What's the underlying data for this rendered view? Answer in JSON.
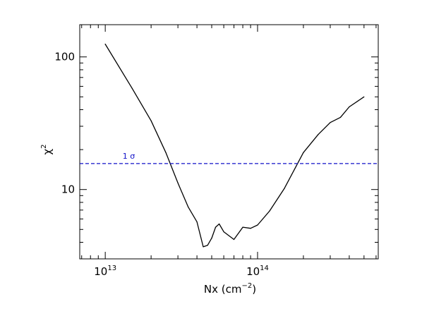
{
  "chart_data": {
    "type": "line",
    "title": "",
    "xlabel": "Nx (cm",
    "xlabel_exponent": "−2",
    "xlabel_suffix": ")",
    "ylabel": "χ",
    "ylabel_exponent": "2",
    "xscale": "log",
    "yscale": "log",
    "xlim": [
      6800000000000.0,
      620000000000000.0
    ],
    "ylim": [
      3.0,
      175
    ],
    "grid": false,
    "legend": "none",
    "x_ticks": [
      {
        "value": 10000000000000.0,
        "base": "10",
        "exp": "13"
      },
      {
        "value": 100000000000000.0,
        "base": "10",
        "exp": "14"
      }
    ],
    "y_ticks": [
      {
        "value": 10,
        "label": "10"
      },
      {
        "value": 100,
        "label": "100"
      }
    ],
    "series": [
      {
        "color": "#000000",
        "line_style": "solid",
        "x": [
          10000000000000.0,
          15000000000000.0,
          20000000000000.0,
          25000000000000.0,
          30000000000000.0,
          35000000000000.0,
          40000000000000.0,
          44000000000000.0,
          47000000000000.0,
          50000000000000.0,
          53000000000000.0,
          56000000000000.0,
          60000000000000.0,
          70000000000000.0,
          80000000000000.0,
          90000000000000.0,
          100000000000000.0,
          120000000000000.0,
          150000000000000.0,
          200000000000000.0,
          250000000000000.0,
          300000000000000.0,
          350000000000000.0,
          400000000000000.0,
          500000000000000.0
        ],
        "y": [
          125,
          58,
          33,
          19,
          11.2,
          7.4,
          5.7,
          3.7,
          3.8,
          4.3,
          5.2,
          5.5,
          4.8,
          4.2,
          5.2,
          5.1,
          5.4,
          6.9,
          10.2,
          19,
          26,
          32,
          35,
          42,
          50
        ]
      }
    ],
    "reference_lines": [
      {
        "axis": "y",
        "value": 15.7,
        "color": "#1010c8",
        "line_style": "dashed",
        "label": "1 σ",
        "label_x": 13000000000000.0
      }
    ]
  }
}
